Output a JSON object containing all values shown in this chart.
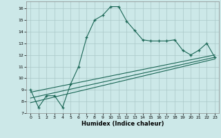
{
  "xlabel": "Humidex (Indice chaleur)",
  "bg_color": "#cce8e8",
  "grid_color": "#aac8c8",
  "line_color": "#1a6655",
  "xlim": [
    -0.5,
    23.5
  ],
  "ylim": [
    7,
    16.6
  ],
  "xticks": [
    0,
    1,
    2,
    3,
    4,
    5,
    6,
    7,
    8,
    9,
    10,
    11,
    12,
    13,
    14,
    15,
    16,
    17,
    18,
    19,
    20,
    21,
    22,
    23
  ],
  "yticks": [
    7,
    8,
    9,
    10,
    11,
    12,
    13,
    14,
    15,
    16
  ],
  "series1_x": [
    0,
    1,
    2,
    3,
    4,
    5,
    6,
    7,
    8,
    9,
    10,
    11,
    12,
    13,
    14,
    15,
    16,
    17,
    18,
    19,
    20,
    21,
    22,
    23
  ],
  "series1_y": [
    9.0,
    7.5,
    8.5,
    8.5,
    7.5,
    9.5,
    11.0,
    13.5,
    15.0,
    15.4,
    16.15,
    16.15,
    14.9,
    14.1,
    13.3,
    13.2,
    13.2,
    13.2,
    13.3,
    12.4,
    12.0,
    12.4,
    13.0,
    11.8
  ],
  "series2_x": [
    0,
    23
  ],
  "series2_y": [
    8.8,
    12.0
  ],
  "series3_x": [
    0,
    23
  ],
  "series3_y": [
    8.3,
    11.8
  ],
  "series4_x": [
    0,
    23
  ],
  "series4_y": [
    7.9,
    11.65
  ]
}
